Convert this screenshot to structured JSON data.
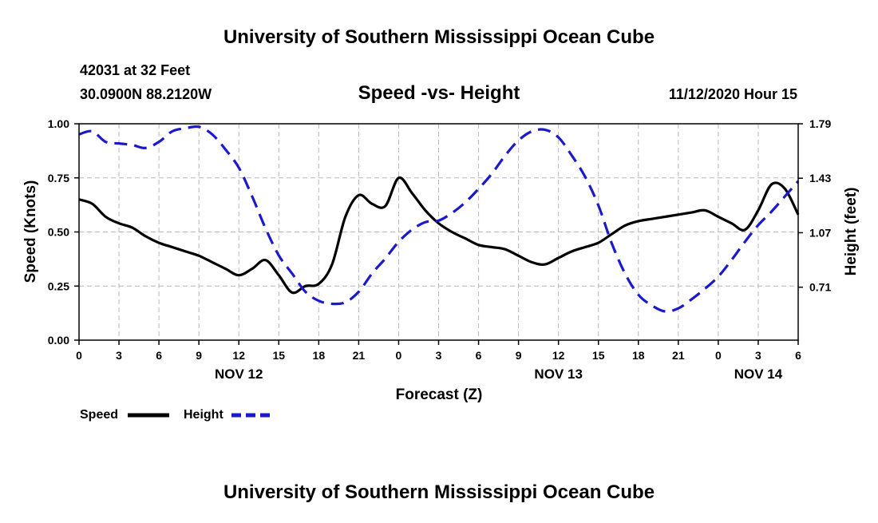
{
  "header": {
    "title_top": "University of Southern Mississippi Ocean Cube",
    "station_line": "42031 at 32 Feet",
    "position_line": "30.0900N 88.2120W",
    "timestamp": "11/12/2020 Hour 15",
    "title_bottom": "University of Southern Mississippi Ocean Cube"
  },
  "colors": {
    "speed": "#000000",
    "height": "#1a1acc"
  },
  "chart_data": {
    "type": "line",
    "title": "Speed -vs- Height",
    "xlabel": "Forecast (Z)",
    "ylabel": "Speed (Knots)",
    "y2label": "Height (feet)",
    "xlim": [
      0,
      54
    ],
    "ylim": [
      0,
      1
    ],
    "y2lim": [
      0.36,
      1.79
    ],
    "xticks": [
      0,
      3,
      6,
      9,
      12,
      15,
      18,
      21,
      24,
      27,
      30,
      33,
      36,
      39,
      42,
      45,
      48,
      51,
      54
    ],
    "xtick_labels": [
      "0",
      "3",
      "6",
      "9",
      "12",
      "15",
      "18",
      "21",
      "0",
      "3",
      "6",
      "9",
      "12",
      "15",
      "18",
      "21",
      "0",
      "3",
      "6"
    ],
    "yticks": [
      0,
      0.25,
      0.5,
      0.75,
      1
    ],
    "ytick_labels": [
      "0.00",
      "0.25",
      "0.50",
      "0.75",
      "1.00"
    ],
    "y2ticks": [
      0.71,
      1.07,
      1.43,
      1.79
    ],
    "y2tick_labels": [
      "0.71",
      "1.07",
      "1.43",
      "1.79"
    ],
    "date_labels": [
      {
        "label": "NOV 12",
        "x": 12
      },
      {
        "label": "NOV 13",
        "x": 36
      },
      {
        "label": "NOV 14",
        "x": 51
      }
    ],
    "series": [
      {
        "name": "Speed",
        "axis": "left",
        "style": "solid",
        "x": [
          0,
          1,
          2,
          3,
          4,
          5,
          6,
          7,
          8,
          9,
          10,
          11,
          12,
          13,
          14,
          15,
          16,
          17,
          18,
          19,
          20,
          21,
          22,
          23,
          24,
          25,
          26,
          27,
          28,
          29,
          30,
          31,
          32,
          33,
          34,
          35,
          36,
          37,
          38,
          39,
          40,
          41,
          42,
          43,
          44,
          45,
          46,
          47,
          48,
          49,
          50,
          51,
          52,
          53,
          54
        ],
        "values": [
          0.65,
          0.63,
          0.57,
          0.54,
          0.52,
          0.48,
          0.45,
          0.43,
          0.41,
          0.39,
          0.36,
          0.33,
          0.3,
          0.33,
          0.37,
          0.3,
          0.22,
          0.25,
          0.26,
          0.35,
          0.57,
          0.67,
          0.63,
          0.62,
          0.75,
          0.68,
          0.6,
          0.54,
          0.5,
          0.47,
          0.44,
          0.43,
          0.42,
          0.39,
          0.36,
          0.35,
          0.38,
          0.41,
          0.43,
          0.45,
          0.49,
          0.53,
          0.55,
          0.56,
          0.57,
          0.58,
          0.59,
          0.6,
          0.57,
          0.54,
          0.51,
          0.6,
          0.72,
          0.7,
          0.58
        ]
      },
      {
        "name": "Height",
        "axis": "right",
        "style": "dashed",
        "x": [
          0,
          1,
          2,
          3,
          4,
          5,
          6,
          7,
          8,
          9,
          10,
          11,
          12,
          13,
          14,
          15,
          16,
          17,
          18,
          19,
          20,
          21,
          22,
          23,
          24,
          25,
          26,
          27,
          28,
          29,
          30,
          31,
          32,
          33,
          34,
          35,
          36,
          37,
          38,
          39,
          40,
          41,
          42,
          43,
          44,
          45,
          46,
          47,
          48,
          49,
          50,
          51,
          52,
          53,
          54
        ],
        "values": [
          1.72,
          1.74,
          1.67,
          1.66,
          1.65,
          1.63,
          1.67,
          1.74,
          1.76,
          1.77,
          1.72,
          1.62,
          1.5,
          1.31,
          1.1,
          0.92,
          0.8,
          0.68,
          0.62,
          0.6,
          0.61,
          0.68,
          0.8,
          0.9,
          1.01,
          1.09,
          1.14,
          1.15,
          1.2,
          1.27,
          1.36,
          1.46,
          1.58,
          1.68,
          1.74,
          1.75,
          1.7,
          1.58,
          1.44,
          1.25,
          1.0,
          0.8,
          0.66,
          0.59,
          0.55,
          0.57,
          0.63,
          0.7,
          0.78,
          0.89,
          1.01,
          1.12,
          1.21,
          1.31,
          1.41
        ]
      }
    ]
  }
}
